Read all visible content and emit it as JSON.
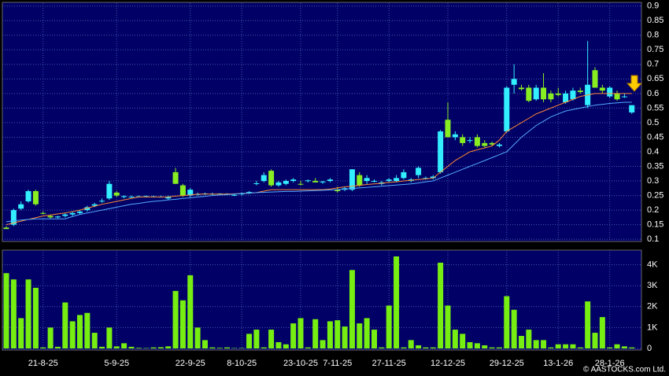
{
  "watermark": "© AASTOCKS.com Ltd.",
  "chart_data": [
    {
      "type": "candlestick",
      "up_color": "#33eeff",
      "down_color": "#88ee22",
      "open": [
        0.14,
        0.15,
        0.205,
        0.23,
        0.265,
        0.19,
        0.18,
        0.175,
        0.18,
        0.185,
        0.19,
        0.2,
        0.215,
        0.23,
        0.24,
        0.26,
        0.245,
        0.245,
        0.245,
        0.246,
        0.246,
        0.245,
        0.24,
        0.33,
        0.285,
        0.25,
        0.255,
        0.256,
        0.255,
        0.256,
        0.255,
        0.25,
        0.255,
        0.26,
        0.29,
        0.3,
        0.335,
        0.285,
        0.29,
        0.3,
        0.29,
        0.3,
        0.3,
        0.295,
        0.3,
        0.27,
        0.27,
        0.27,
        0.32,
        0.3,
        0.3,
        0.29,
        0.3,
        0.3,
        0.31,
        0.3,
        0.32,
        0.31,
        0.31,
        0.33,
        0.51,
        0.45,
        0.45,
        0.44,
        0.45,
        0.43,
        0.43,
        0.42,
        0.47,
        0.63,
        0.62,
        0.62,
        0.58,
        0.62,
        0.6,
        0.6,
        0.57,
        0.58,
        0.61,
        0.56,
        0.68,
        0.62,
        0.59,
        0.6,
        0.59,
        0.535
      ],
      "high": [
        0.145,
        0.205,
        0.23,
        0.27,
        0.27,
        0.195,
        0.185,
        0.18,
        0.19,
        0.195,
        0.2,
        0.215,
        0.225,
        0.24,
        0.3,
        0.265,
        0.25,
        0.25,
        0.25,
        0.25,
        0.25,
        0.25,
        0.25,
        0.345,
        0.29,
        0.275,
        0.26,
        0.26,
        0.26,
        0.258,
        0.258,
        0.255,
        0.26,
        0.265,
        0.3,
        0.33,
        0.34,
        0.3,
        0.305,
        0.31,
        0.3,
        0.305,
        0.31,
        0.3,
        0.31,
        0.28,
        0.28,
        0.34,
        0.33,
        0.32,
        0.305,
        0.3,
        0.31,
        0.32,
        0.34,
        0.31,
        0.35,
        0.315,
        0.32,
        0.475,
        0.57,
        0.47,
        0.46,
        0.45,
        0.46,
        0.44,
        0.435,
        0.43,
        0.625,
        0.7,
        0.63,
        0.63,
        0.63,
        0.67,
        0.61,
        0.62,
        0.61,
        0.62,
        0.62,
        0.78,
        0.69,
        0.63,
        0.625,
        0.61,
        0.6,
        0.56
      ],
      "low": [
        0.135,
        0.145,
        0.2,
        0.225,
        0.215,
        0.185,
        0.17,
        0.172,
        0.175,
        0.18,
        0.185,
        0.195,
        0.21,
        0.225,
        0.235,
        0.245,
        0.24,
        0.242,
        0.243,
        0.244,
        0.244,
        0.244,
        0.235,
        0.29,
        0.245,
        0.245,
        0.25,
        0.252,
        0.252,
        0.254,
        0.253,
        0.248,
        0.25,
        0.255,
        0.285,
        0.295,
        0.28,
        0.28,
        0.285,
        0.295,
        0.285,
        0.295,
        0.295,
        0.29,
        0.295,
        0.26,
        0.265,
        0.265,
        0.28,
        0.29,
        0.295,
        0.285,
        0.295,
        0.295,
        0.305,
        0.295,
        0.31,
        0.305,
        0.305,
        0.325,
        0.45,
        0.44,
        0.42,
        0.43,
        0.415,
        0.415,
        0.42,
        0.415,
        0.465,
        0.6,
        0.61,
        0.57,
        0.575,
        0.57,
        0.57,
        0.59,
        0.565,
        0.575,
        0.6,
        0.55,
        0.62,
        0.6,
        0.585,
        0.575,
        0.585,
        0.53
      ],
      "close": [
        0.135,
        0.2,
        0.22,
        0.265,
        0.22,
        0.188,
        0.175,
        0.178,
        0.185,
        0.19,
        0.195,
        0.21,
        0.22,
        0.232,
        0.29,
        0.25,
        0.248,
        0.246,
        0.247,
        0.248,
        0.247,
        0.246,
        0.245,
        0.29,
        0.25,
        0.27,
        0.255,
        0.257,
        0.256,
        0.257,
        0.256,
        0.252,
        0.257,
        0.262,
        0.292,
        0.32,
        0.285,
        0.295,
        0.3,
        0.305,
        0.288,
        0.302,
        0.295,
        0.298,
        0.305,
        0.265,
        0.275,
        0.34,
        0.285,
        0.31,
        0.3,
        0.295,
        0.305,
        0.31,
        0.33,
        0.305,
        0.345,
        0.31,
        0.315,
        0.47,
        0.45,
        0.46,
        0.43,
        0.44,
        0.42,
        0.42,
        0.425,
        0.425,
        0.62,
        0.65,
        0.615,
        0.575,
        0.62,
        0.58,
        0.58,
        0.595,
        0.6,
        0.61,
        0.605,
        0.63,
        0.62,
        0.61,
        0.62,
        0.58,
        0.59,
        0.56
      ],
      "series": [
        {
          "color": "#ff8833",
          "values": [
            0.15,
            0.156,
            0.162,
            0.168,
            0.174,
            0.18,
            0.183,
            0.187,
            0.19,
            0.195,
            0.2,
            0.207,
            0.213,
            0.22,
            0.225,
            0.23,
            0.235,
            0.24,
            0.245,
            0.245,
            0.245,
            0.245,
            0.245,
            0.248,
            0.25,
            0.252,
            0.255,
            0.255,
            0.255,
            0.255,
            0.255,
            0.256,
            0.257,
            0.258,
            0.26,
            0.265,
            0.27,
            0.27,
            0.27,
            0.27,
            0.27,
            0.27,
            0.27,
            0.27,
            0.272,
            0.276,
            0.28,
            0.282,
            0.285,
            0.288,
            0.29,
            0.292,
            0.295,
            0.297,
            0.3,
            0.302,
            0.305,
            0.307,
            0.31,
            0.33,
            0.35,
            0.37,
            0.385,
            0.4,
            0.407,
            0.413,
            0.42,
            0.44,
            0.47,
            0.485,
            0.5,
            0.515,
            0.53,
            0.54,
            0.55,
            0.56,
            0.57,
            0.58,
            0.59,
            0.595,
            0.6,
            0.6,
            0.6,
            0.6,
            0.6,
            0.6
          ]
        },
        {
          "color": "#55aaff",
          "values": [
            0.16,
            0.163,
            0.166,
            0.168,
            0.17,
            0.17,
            0.17,
            0.17,
            0.17,
            0.178,
            0.185,
            0.19,
            0.195,
            0.2,
            0.205,
            0.21,
            0.215,
            0.22,
            0.223,
            0.227,
            0.23,
            0.232,
            0.235,
            0.237,
            0.24,
            0.242,
            0.245,
            0.247,
            0.25,
            0.252,
            0.253,
            0.255,
            0.257,
            0.258,
            0.26,
            0.261,
            0.262,
            0.263,
            0.264,
            0.264,
            0.265,
            0.266,
            0.267,
            0.268,
            0.269,
            0.27,
            0.272,
            0.274,
            0.276,
            0.278,
            0.28,
            0.282,
            0.284,
            0.286,
            0.288,
            0.29,
            0.293,
            0.297,
            0.3,
            0.31,
            0.32,
            0.33,
            0.34,
            0.35,
            0.36,
            0.37,
            0.38,
            0.39,
            0.4,
            0.425,
            0.45,
            0.47,
            0.49,
            0.505,
            0.52,
            0.53,
            0.54,
            0.545,
            0.55,
            0.555,
            0.56,
            0.563,
            0.566,
            0.568,
            0.57,
            0.57
          ]
        }
      ],
      "ylim": [
        0.095,
        0.91
      ],
      "yticks": [
        0.1,
        0.15,
        0.2,
        0.25,
        0.3,
        0.35,
        0.4,
        0.45,
        0.5,
        0.55,
        0.6,
        0.65,
        0.7,
        0.75,
        0.8,
        0.85,
        0.9
      ],
      "grid": true
    },
    {
      "type": "bar",
      "color": "#77ee11",
      "categories": [
        null,
        null,
        null,
        null,
        null,
        "21-8-25",
        null,
        null,
        null,
        null,
        null,
        null,
        null,
        null,
        null,
        "5-9-25",
        null,
        null,
        null,
        null,
        null,
        null,
        null,
        null,
        null,
        "22-9-25",
        null,
        null,
        null,
        null,
        null,
        null,
        "8-10-25",
        null,
        null,
        null,
        null,
        null,
        null,
        null,
        "23-10-25",
        null,
        null,
        null,
        null,
        "7-11-25",
        null,
        null,
        null,
        null,
        null,
        null,
        "27-11-25",
        null,
        null,
        null,
        null,
        null,
        null,
        null,
        "12-12-25",
        null,
        null,
        null,
        null,
        null,
        null,
        null,
        "29-12-25",
        null,
        null,
        null,
        null,
        null,
        null,
        "13-1-26",
        null,
        null,
        null,
        null,
        null,
        null,
        "28-1-26",
        null,
        null,
        null
      ],
      "values": [
        3.6,
        3.3,
        1.45,
        3.3,
        2.9,
        0.05,
        1.0,
        0.08,
        2.2,
        1.3,
        1.6,
        1.7,
        0.75,
        0.08,
        1.0,
        0.1,
        0.25,
        0.08,
        0.03,
        0.02,
        0.05,
        0.06,
        0.1,
        2.75,
        2.3,
        3.5,
        1.0,
        0.4,
        0.05,
        0.03,
        0.05,
        0.02,
        0.02,
        0.7,
        0.9,
        0.05,
        0.9,
        0.3,
        0.2,
        1.2,
        1.45,
        0.05,
        1.4,
        0.4,
        1.3,
        1.35,
        1.05,
        3.75,
        1.2,
        1.45,
        0.9,
        0.05,
        2.05,
        4.4,
        0.05,
        0.4,
        0.15,
        0.05,
        0.05,
        4.1,
        2.05,
        0.9,
        0.7,
        0.3,
        0.25,
        0.15,
        0.05,
        0.05,
        2.5,
        1.85,
        0.6,
        0.9,
        0.4,
        0.4,
        0.05,
        0.2,
        0.2,
        0.2,
        0.05,
        2.25,
        0.75,
        1.5,
        0.05,
        0.2,
        0.1,
        0.05
      ],
      "ylim": [
        0,
        4.7
      ],
      "yticks": [
        0,
        {
          "value": 1,
          "label": "1K"
        },
        {
          "value": 2,
          "label": "2K"
        },
        {
          "value": 3,
          "label": "3K"
        },
        {
          "value": 4,
          "label": "4K"
        }
      ],
      "grid": true
    }
  ]
}
